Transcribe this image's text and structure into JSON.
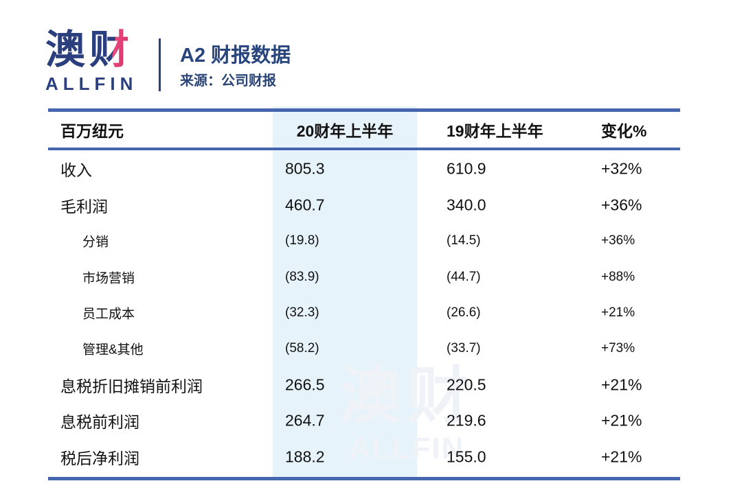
{
  "brand": {
    "logo_char1": "澳",
    "logo_char2": "财",
    "logo_en": "ALLFIN",
    "navy": "#2B3F7E",
    "pink": "#E84A7F"
  },
  "header": {
    "title": "A2 财报数据",
    "source": "来源：公司财报"
  },
  "watermark": {
    "cn": "澳财",
    "en": "ALLFIN"
  },
  "colors": {
    "rule_blue": "#4565AE",
    "highlight_band": "#E7F3FA",
    "watermark": "#EFF3F7",
    "text": "#111111"
  },
  "chart_data": {
    "type": "table",
    "title": "A2 财报数据",
    "source": "来源：公司财报",
    "unit_header": "百万纽元",
    "columns": [
      "20财年上半年",
      "19财年上半年",
      "变化%"
    ],
    "highlighted_column": "20财年上半年",
    "rows": [
      {
        "label": "收入",
        "fy20h1": "805.3",
        "fy19h1": "610.9",
        "change": "+32%",
        "indent": false
      },
      {
        "label": "毛利润",
        "fy20h1": "460.7",
        "fy19h1": "340.0",
        "change": "+36%",
        "indent": false
      },
      {
        "label": "分销",
        "fy20h1": "(19.8)",
        "fy19h1": "(14.5)",
        "change": "+36%",
        "indent": true
      },
      {
        "label": "市场营销",
        "fy20h1": "(83.9)",
        "fy19h1": "(44.7)",
        "change": "+88%",
        "indent": true
      },
      {
        "label": "员工成本",
        "fy20h1": "(32.3)",
        "fy19h1": "(26.6)",
        "change": "+21%",
        "indent": true
      },
      {
        "label": "管理&其他",
        "fy20h1": "(58.2)",
        "fy19h1": "(33.7)",
        "change": "+73%",
        "indent": true
      },
      {
        "label": "息税折旧摊销前利润",
        "fy20h1": "266.5",
        "fy19h1": "220.5",
        "change": "+21%",
        "indent": false
      },
      {
        "label": "息税前利润",
        "fy20h1": "264.7",
        "fy19h1": "219.6",
        "change": "+21%",
        "indent": false
      },
      {
        "label": "税后净利润",
        "fy20h1": "188.2",
        "fy19h1": "155.0",
        "change": "+21%",
        "indent": false
      }
    ]
  }
}
